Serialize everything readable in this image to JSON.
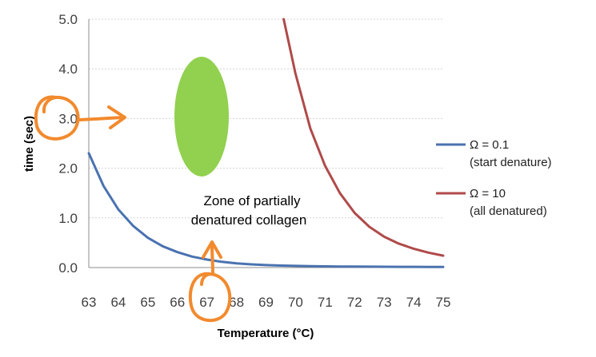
{
  "chart_data": {
    "type": "line",
    "xlabel": "Temperature (°C)",
    "ylabel": "time (sec)",
    "xlim": [
      63,
      75
    ],
    "ylim": [
      0,
      5
    ],
    "x_ticks": [
      "63",
      "64",
      "65",
      "66",
      "67",
      "68",
      "69",
      "70",
      "71",
      "72",
      "73",
      "74",
      "75"
    ],
    "y_ticks": [
      "0.0",
      "1.0",
      "2.0",
      "3.0",
      "4.0",
      "5.0"
    ],
    "grid": true,
    "legend_position": "right",
    "series": [
      {
        "name_line1": "Ω = 0.1",
        "name_line2": "(start denature)",
        "color": "#4a72b0",
        "x": [
          63,
          63.5,
          64,
          64.5,
          65,
          65.5,
          66,
          66.5,
          67,
          67.5,
          68,
          68.5,
          69,
          69.5,
          70,
          70.5,
          71,
          71.5,
          72,
          72.5,
          73,
          73.5,
          74,
          74.5,
          75
        ],
        "y": [
          2.3,
          1.64,
          1.17,
          0.84,
          0.6,
          0.43,
          0.31,
          0.22,
          0.16,
          0.115,
          0.085,
          0.065,
          0.05,
          0.04,
          0.033,
          0.028,
          0.024,
          0.021,
          0.019,
          0.017,
          0.016,
          0.015,
          0.014,
          0.013,
          0.012
        ]
      },
      {
        "name_line1": "Ω = 10",
        "name_line2": "(all denatured)",
        "color": "#b04a4a",
        "x": [
          69.6,
          70,
          70.5,
          71,
          71.5,
          72,
          72.5,
          73,
          73.5,
          74,
          74.5,
          75
        ],
        "y": [
          5.0,
          3.9,
          2.8,
          2.05,
          1.5,
          1.1,
          0.82,
          0.62,
          0.48,
          0.38,
          0.3,
          0.24
        ]
      }
    ],
    "annotations": {
      "zone_line1": "Zone of partially",
      "zone_line2": "denatured collagen",
      "zone_color": "#92d050",
      "marker_color": "#f28a2e"
    }
  }
}
